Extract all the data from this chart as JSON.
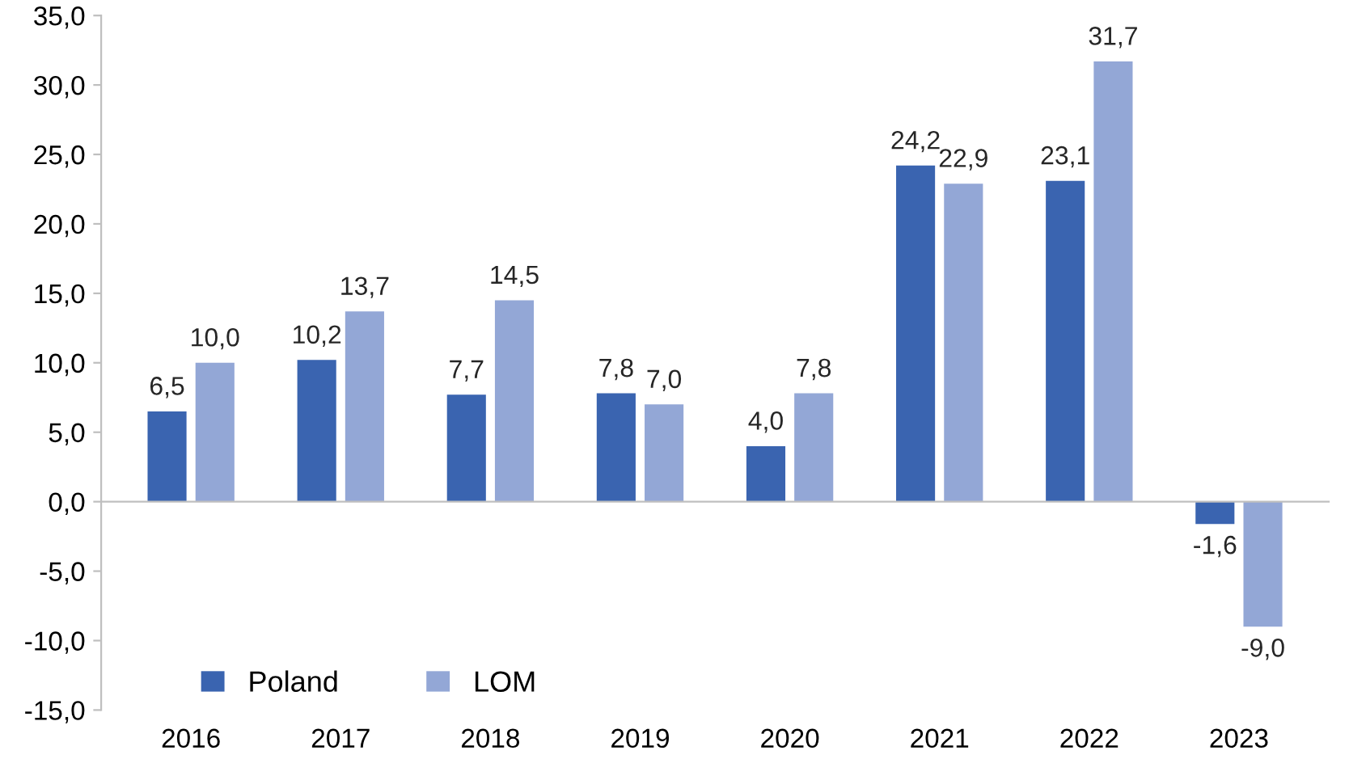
{
  "chart_data": {
    "type": "bar",
    "categories": [
      "2016",
      "2017",
      "2018",
      "2019",
      "2020",
      "2021",
      "2022",
      "2023"
    ],
    "series": [
      {
        "name": "Poland",
        "color": "#3a64b0",
        "values": [
          6.5,
          10.2,
          7.7,
          7.8,
          4.0,
          24.2,
          23.1,
          -1.6
        ],
        "value_labels": [
          "6,5",
          "10,2",
          "7,7",
          "7,8",
          "4,0",
          "24,2",
          "23,1",
          "-1,6"
        ]
      },
      {
        "name": "LOM",
        "color": "#93a7d6",
        "values": [
          10.0,
          13.7,
          14.5,
          7.0,
          7.8,
          22.9,
          31.7,
          -9.0
        ],
        "value_labels": [
          "10,0",
          "13,7",
          "14,5",
          "7,0",
          "7,8",
          "22,9",
          "31,7",
          "-9,0"
        ]
      }
    ],
    "ylim": [
      -15,
      35
    ],
    "yticks": [
      {
        "value": -15,
        "label": "-15,0"
      },
      {
        "value": -10,
        "label": "-10,0"
      },
      {
        "value": -5,
        "label": "-5,0"
      },
      {
        "value": 0,
        "label": "0,0"
      },
      {
        "value": 5,
        "label": "5,0"
      },
      {
        "value": 10,
        "label": "10,0"
      },
      {
        "value": 15,
        "label": "15,0"
      },
      {
        "value": 20,
        "label": "20,0"
      },
      {
        "value": 25,
        "label": "25,0"
      },
      {
        "value": 30,
        "label": "30,0"
      },
      {
        "value": 35,
        "label": "35,0"
      }
    ],
    "legend": "bottom left"
  }
}
